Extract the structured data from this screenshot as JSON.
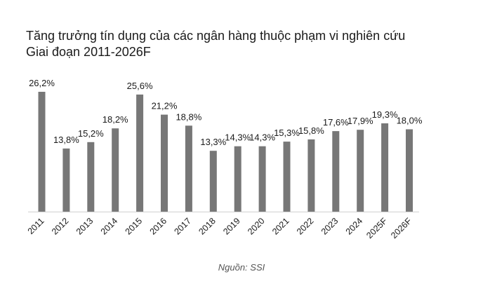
{
  "title_line1": "Tăng trưởng tín dụng của các ngân hàng thuộc phạm vi nghiên cứu",
  "title_line2": "Giai đoạn 2011-2026F",
  "source": "Nguồn: SSI",
  "colors": {
    "bar": "#777777",
    "axis": "#d0d0d0",
    "text": "#1a1a1a"
  },
  "chart_data": {
    "type": "bar",
    "title": "Tăng trưởng tín dụng của các ngân hàng thuộc phạm vi nghiên cứu",
    "subtitle": "Giai đoạn 2011-2026F",
    "categories": [
      "2011",
      "2012",
      "2013",
      "2014",
      "2015",
      "2016",
      "2017",
      "2018",
      "2019",
      "2020",
      "2021",
      "2022",
      "2023",
      "2024",
      "2025F",
      "2026F"
    ],
    "values": [
      26.2,
      13.8,
      15.2,
      18.2,
      25.6,
      21.2,
      18.8,
      13.3,
      14.3,
      14.3,
      15.3,
      15.8,
      17.6,
      17.9,
      19.3,
      18.0
    ],
    "labels": [
      "26,2%",
      "13,8%",
      "15,2%",
      "18,2%",
      "25,6%",
      "21,2%",
      "18,8%",
      "13,3%",
      "14,3%",
      "14,3%",
      "15,3%",
      "15,8%",
      "17,6%",
      "17,9%",
      "19,3%",
      "18,0%"
    ],
    "xlabel": "",
    "ylabel": "",
    "ylim": [
      0,
      26.2
    ],
    "grid": false,
    "legend": "none"
  }
}
